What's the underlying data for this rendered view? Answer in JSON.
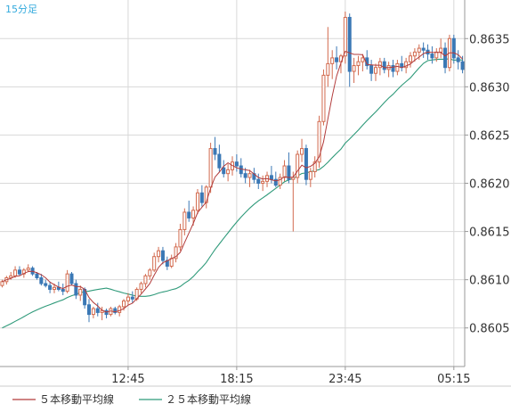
{
  "chart_data": {
    "type": "candlestick",
    "title": "15分足",
    "y_ticks": [
      0.8605,
      0.861,
      0.8615,
      0.862,
      0.8625,
      0.863,
      0.8635
    ],
    "y_tick_labels": [
      "0.8605",
      "0.8610",
      "0.8615",
      "0.8620",
      "0.8625",
      "0.8630",
      "0.8635"
    ],
    "ylim": [
      0.8601,
      0.8639
    ],
    "x_ticks": [
      {
        "label": "12:45",
        "index": 29
      },
      {
        "label": "18:15",
        "index": 54
      },
      {
        "label": "23:45",
        "index": 79
      },
      {
        "label": "05:15",
        "index": 104
      }
    ],
    "candles": [
      [
        0.86094,
        0.861,
        0.86092,
        0.86098
      ],
      [
        0.86098,
        0.86104,
        0.86095,
        0.86102
      ],
      [
        0.86102,
        0.86108,
        0.861,
        0.86104
      ],
      [
        0.86104,
        0.86114,
        0.86102,
        0.8611
      ],
      [
        0.8611,
        0.86114,
        0.86104,
        0.86106
      ],
      [
        0.86106,
        0.86112,
        0.86102,
        0.8611
      ],
      [
        0.8611,
        0.86116,
        0.86108,
        0.86112
      ],
      [
        0.86112,
        0.86114,
        0.86104,
        0.86106
      ],
      [
        0.86106,
        0.86108,
        0.861,
        0.86102
      ],
      [
        0.86102,
        0.86106,
        0.86094,
        0.86096
      ],
      [
        0.86096,
        0.861,
        0.86092,
        0.86094
      ],
      [
        0.86094,
        0.86098,
        0.86086,
        0.8609
      ],
      [
        0.8609,
        0.86096,
        0.86086,
        0.86092
      ],
      [
        0.86092,
        0.86098,
        0.86088,
        0.8609
      ],
      [
        0.8609,
        0.86096,
        0.86084,
        0.86088
      ],
      [
        0.86088,
        0.8611,
        0.86086,
        0.86106
      ],
      [
        0.86106,
        0.86108,
        0.86094,
        0.86096
      ],
      [
        0.86096,
        0.861,
        0.8608,
        0.86084
      ],
      [
        0.86084,
        0.86094,
        0.86078,
        0.8609
      ],
      [
        0.8609,
        0.86092,
        0.8607,
        0.86074
      ],
      [
        0.86074,
        0.8608,
        0.86056,
        0.86064
      ],
      [
        0.86064,
        0.86072,
        0.8606,
        0.8607
      ],
      [
        0.8607,
        0.86076,
        0.86062,
        0.86066
      ],
      [
        0.86066,
        0.86072,
        0.86058,
        0.86068
      ],
      [
        0.86068,
        0.8607,
        0.8606,
        0.86064
      ],
      [
        0.86064,
        0.86072,
        0.86062,
        0.8607
      ],
      [
        0.8607,
        0.86072,
        0.86064,
        0.86066
      ],
      [
        0.86066,
        0.86074,
        0.86062,
        0.86072
      ],
      [
        0.86072,
        0.8608,
        0.86068,
        0.86078
      ],
      [
        0.86078,
        0.86086,
        0.86074,
        0.86082
      ],
      [
        0.86082,
        0.86088,
        0.86076,
        0.8608
      ],
      [
        0.8608,
        0.86092,
        0.86078,
        0.8609
      ],
      [
        0.8609,
        0.86098,
        0.86086,
        0.86096
      ],
      [
        0.86096,
        0.86106,
        0.86092,
        0.86104
      ],
      [
        0.86104,
        0.86112,
        0.861,
        0.8611
      ],
      [
        0.8611,
        0.86128,
        0.86108,
        0.86124
      ],
      [
        0.86124,
        0.86134,
        0.86118,
        0.8613
      ],
      [
        0.8613,
        0.86134,
        0.86116,
        0.8612
      ],
      [
        0.8612,
        0.86124,
        0.8611,
        0.86114
      ],
      [
        0.86114,
        0.86126,
        0.86112,
        0.86122
      ],
      [
        0.86122,
        0.86138,
        0.86118,
        0.86134
      ],
      [
        0.86134,
        0.86158,
        0.8613,
        0.86152
      ],
      [
        0.86152,
        0.86174,
        0.86146,
        0.8617
      ],
      [
        0.8617,
        0.86182,
        0.8616,
        0.86164
      ],
      [
        0.86164,
        0.86176,
        0.86156,
        0.86172
      ],
      [
        0.86172,
        0.86194,
        0.86168,
        0.8619
      ],
      [
        0.8619,
        0.86198,
        0.86176,
        0.8618
      ],
      [
        0.8618,
        0.86198,
        0.86174,
        0.86196
      ],
      [
        0.86196,
        0.86242,
        0.8619,
        0.86236
      ],
      [
        0.86236,
        0.86248,
        0.86224,
        0.8623
      ],
      [
        0.8623,
        0.8624,
        0.86212,
        0.86216
      ],
      [
        0.86216,
        0.86224,
        0.86206,
        0.8621
      ],
      [
        0.8621,
        0.8622,
        0.86202,
        0.86214
      ],
      [
        0.86214,
        0.86228,
        0.86208,
        0.86222
      ],
      [
        0.86222,
        0.8623,
        0.86212,
        0.86218
      ],
      [
        0.86218,
        0.86226,
        0.86206,
        0.8621
      ],
      [
        0.8621,
        0.86216,
        0.862,
        0.86206
      ],
      [
        0.86206,
        0.86214,
        0.86196,
        0.8621
      ],
      [
        0.8621,
        0.86216,
        0.862,
        0.86204
      ],
      [
        0.86204,
        0.8621,
        0.86194,
        0.862
      ],
      [
        0.862,
        0.86208,
        0.86192,
        0.86202
      ],
      [
        0.86202,
        0.86212,
        0.86196,
        0.86208
      ],
      [
        0.86208,
        0.86218,
        0.862,
        0.86204
      ],
      [
        0.86204,
        0.86212,
        0.86196,
        0.86198
      ],
      [
        0.86198,
        0.8621,
        0.86194,
        0.86206
      ],
      [
        0.86206,
        0.86224,
        0.86202,
        0.86218
      ],
      [
        0.86218,
        0.86232,
        0.862,
        0.86204
      ],
      [
        0.86204,
        0.86212,
        0.8615,
        0.86206
      ],
      [
        0.86206,
        0.86234,
        0.862,
        0.8623
      ],
      [
        0.8623,
        0.86246,
        0.86222,
        0.86236
      ],
      [
        0.86236,
        0.8624,
        0.86198,
        0.86204
      ],
      [
        0.86204,
        0.86216,
        0.86196,
        0.86212
      ],
      [
        0.86212,
        0.86228,
        0.86206,
        0.86222
      ],
      [
        0.86222,
        0.8627,
        0.86216,
        0.86264
      ],
      [
        0.86264,
        0.86318,
        0.8626,
        0.86312
      ],
      [
        0.86312,
        0.86362,
        0.863,
        0.86324
      ],
      [
        0.86324,
        0.86338,
        0.86308,
        0.8633
      ],
      [
        0.8633,
        0.86342,
        0.86318,
        0.86326
      ],
      [
        0.86326,
        0.86334,
        0.86314,
        0.86332
      ],
      [
        0.86332,
        0.86378,
        0.86324,
        0.86372
      ],
      [
        0.86372,
        0.86376,
        0.863,
        0.86316
      ],
      [
        0.86316,
        0.8633,
        0.86304,
        0.86322
      ],
      [
        0.86322,
        0.86332,
        0.86312,
        0.86326
      ],
      [
        0.86326,
        0.86334,
        0.86316,
        0.8633
      ],
      [
        0.8633,
        0.86338,
        0.86318,
        0.86322
      ],
      [
        0.86322,
        0.86328,
        0.86306,
        0.86314
      ],
      [
        0.86314,
        0.86324,
        0.86306,
        0.8632
      ],
      [
        0.8632,
        0.8633,
        0.86312,
        0.86326
      ],
      [
        0.86326,
        0.8633,
        0.86314,
        0.86318
      ],
      [
        0.86318,
        0.86326,
        0.8631,
        0.86322
      ],
      [
        0.86322,
        0.86328,
        0.8631,
        0.86316
      ],
      [
        0.86316,
        0.86328,
        0.86312,
        0.86324
      ],
      [
        0.86324,
        0.86332,
        0.86316,
        0.8632
      ],
      [
        0.8632,
        0.8633,
        0.86314,
        0.86326
      ],
      [
        0.86326,
        0.86336,
        0.8632,
        0.86332
      ],
      [
        0.86332,
        0.8634,
        0.86326,
        0.86336
      ],
      [
        0.86336,
        0.86344,
        0.86328,
        0.8634
      ],
      [
        0.8634,
        0.86346,
        0.8633,
        0.86338
      ],
      [
        0.86338,
        0.86344,
        0.86328,
        0.86334
      ],
      [
        0.86334,
        0.86342,
        0.86324,
        0.8633
      ],
      [
        0.8633,
        0.8634,
        0.86326,
        0.86336
      ],
      [
        0.86336,
        0.8635,
        0.8633,
        0.8634
      ],
      [
        0.8634,
        0.86346,
        0.86314,
        0.8632
      ],
      [
        0.8632,
        0.86354,
        0.86316,
        0.8635
      ],
      [
        0.8635,
        0.86354,
        0.86324,
        0.8633
      ],
      [
        0.8633,
        0.86338,
        0.86318,
        0.86326
      ],
      [
        0.86326,
        0.86332,
        0.86314,
        0.86318
      ]
    ],
    "ma5_name": "５本移動平均線",
    "ma25_name": "２５本移動平均線",
    "colors": {
      "bull": "#d26a4e",
      "bear": "#3b78b5",
      "ma5": "#b23b3b",
      "ma25": "#2f9a7a",
      "grid": "#d8d8d8",
      "axis": "#999999",
      "title": "#33aadd"
    },
    "ma25_start_value": 0.86048
  }
}
